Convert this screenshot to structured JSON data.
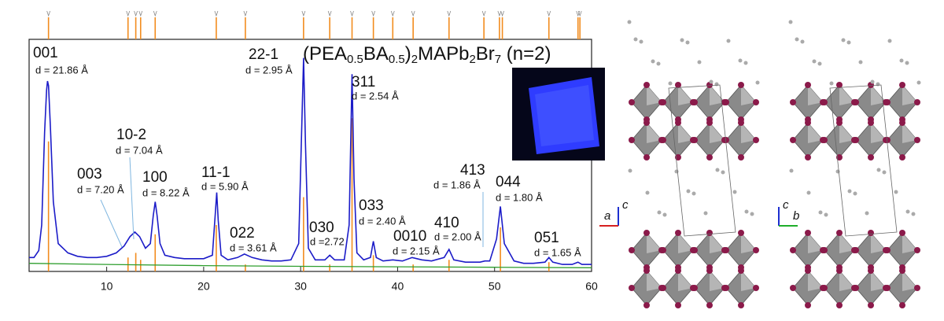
{
  "chart_data": {
    "type": "line",
    "title_parts": [
      {
        "t": "(PEA"
      },
      {
        "sub": "0.5"
      },
      {
        "t": "BA"
      },
      {
        "sub": "0.5"
      },
      {
        "t": ")"
      },
      {
        "sub": "2"
      },
      {
        "t": "MAPb"
      },
      {
        "sub": "2"
      },
      {
        "t": "Br"
      },
      {
        "sub": "7"
      },
      {
        "t": " (n=2)"
      }
    ],
    "xlim": [
      2,
      60
    ],
    "ylim": [
      0,
      100
    ],
    "xticks": [
      10,
      20,
      30,
      40,
      50,
      60
    ],
    "series": [
      {
        "color": "#1c1cc8",
        "x": [
          2,
          2.5,
          3,
          3.3,
          3.6,
          3.8,
          3.9,
          4.0,
          4.2,
          4.5,
          5,
          6,
          7,
          8,
          9,
          10,
          11,
          11.8,
          12.4,
          12.9,
          13.4,
          14,
          14.5,
          14.8,
          15.0,
          15.2,
          15.5,
          16,
          17,
          18,
          19,
          20,
          20.9,
          21.2,
          21.35,
          21.5,
          21.8,
          22.5,
          23.5,
          24.2,
          25,
          26,
          27,
          28,
          29,
          29.8,
          30.1,
          30.3,
          30.5,
          30.8,
          31.5,
          32.5,
          33,
          33.5,
          34.5,
          35.0,
          35.3,
          35.5,
          35.8,
          36.5,
          37.2,
          37.5,
          37.8,
          38.5,
          39.5,
          40.5,
          41.5,
          42.5,
          43.5,
          44.8,
          45.3,
          45.8,
          47,
          48.5,
          49,
          49.5,
          50.2,
          50.6,
          51.0,
          52,
          53,
          54,
          55.2,
          55.6,
          56,
          57,
          58,
          58.6,
          59,
          60
        ],
        "values": [
          6,
          6,
          9,
          20,
          60,
          78,
          82,
          80,
          62,
          30,
          12,
          8,
          6.5,
          6,
          6,
          6.5,
          8,
          11,
          15,
          17,
          15,
          10,
          12,
          24,
          30,
          24,
          12,
          7,
          6,
          5.5,
          5.5,
          5.5,
          7,
          25,
          34,
          22,
          7,
          5,
          6,
          7.5,
          6,
          5,
          4.5,
          4.5,
          5,
          12,
          60,
          92,
          55,
          10,
          5,
          5,
          7,
          5,
          5,
          20,
          85,
          40,
          8,
          5,
          6,
          13,
          6,
          4.5,
          5,
          4.5,
          6,
          5,
          4.5,
          6,
          9.5,
          5,
          4,
          4,
          4.5,
          4.5,
          14,
          28,
          12,
          4.5,
          3.5,
          3.5,
          4,
          6,
          4,
          3,
          3,
          4,
          3,
          3
        ]
      },
      {
        "color": "#2e9e2e",
        "x": [
          2,
          10,
          20,
          30,
          40,
          50,
          60
        ],
        "values": [
          3.5,
          3,
          2.5,
          2.2,
          2,
          1.8,
          1.6
        ]
      }
    ],
    "calc_bars": {
      "color": "#f28c1e",
      "x": [
        4.0,
        12.2,
        13.0,
        13.5,
        15.0,
        21.3,
        24.3,
        30.3,
        33.0,
        35.3,
        37.5,
        41.6,
        45.3,
        50.6,
        55.6
      ],
      "values": [
        56,
        6,
        8,
        5,
        16,
        20,
        3,
        32,
        3,
        66,
        7,
        3,
        5,
        19,
        4
      ]
    },
    "reflections": {
      "color": "#f28c1e",
      "x": [
        4.0,
        12.2,
        13.0,
        13.5,
        15.0,
        21.3,
        24.3,
        30.3,
        33.0,
        35.3,
        37.5,
        39.5,
        41.6,
        45.3,
        48.9,
        50.5,
        50.8,
        55.6,
        58.6,
        58.8
      ]
    },
    "annotations": [
      {
        "label": "001",
        "d": "d = 21.86 Å"
      },
      {
        "label": "22-1",
        "d": "d = 2.95 Å"
      },
      {
        "label": "311",
        "d": "d = 2.54 Å"
      },
      {
        "label": "10-2",
        "d": "d = 7.04 Å"
      },
      {
        "label": "003",
        "d": "d = 7.20 Å"
      },
      {
        "label": "100",
        "d": "d = 8.22 Å"
      },
      {
        "label": "11-1",
        "d": "d = 5.90 Å"
      },
      {
        "label": "022",
        "d": "d = 3.61 Å"
      },
      {
        "label": "030",
        "d": "d =2.72"
      },
      {
        "label": "033",
        "d": "d = 2.40 Å"
      },
      {
        "label": "0010",
        "d": "d = 2.15 Å"
      },
      {
        "label": "410",
        "d": "d = 2.00 Å"
      },
      {
        "label": "413",
        "d": "d = 1.86 Å"
      },
      {
        "label": "044",
        "d": "d = 1.80 Å"
      },
      {
        "label": "051",
        "d": "d = 1.65 Å"
      }
    ]
  },
  "structure_panels": [
    {
      "axes": [
        "c",
        "a"
      ]
    },
    {
      "axes": [
        "c",
        "b"
      ]
    }
  ]
}
